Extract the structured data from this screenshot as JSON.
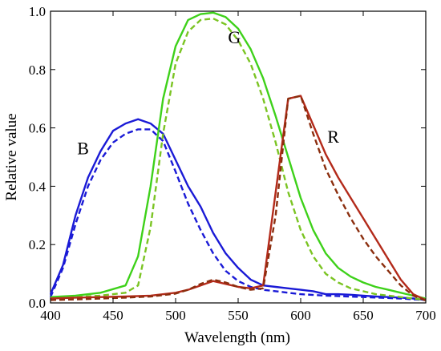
{
  "chart_data": {
    "type": "line",
    "xlabel": "Wavelength (nm)",
    "ylabel": "Relative value",
    "xlim": [
      400,
      700
    ],
    "ylim": [
      0,
      1.0
    ],
    "xticks": [
      400,
      450,
      500,
      550,
      600,
      650,
      700
    ],
    "xtick_labels": [
      "400",
      "450",
      "500",
      "550",
      "600",
      "650",
      "700"
    ],
    "yticks": [
      0,
      0.2,
      0.4,
      0.6,
      0.8,
      1.0
    ],
    "ytick_labels": [
      "0.0",
      "0.2",
      "0.4",
      "0.6",
      "0.8",
      "1.0"
    ],
    "grid": false,
    "annotations": [
      {
        "text": "B",
        "x": 426,
        "y": 0.51
      },
      {
        "text": "G",
        "x": 547,
        "y": 0.89
      },
      {
        "text": "R",
        "x": 626,
        "y": 0.55
      }
    ],
    "series": [
      {
        "color": "#1a1ad6",
        "dash": "solid",
        "x": [
          400,
          410,
          420,
          430,
          440,
          450,
          460,
          470,
          480,
          490,
          500,
          510,
          520,
          530,
          540,
          550,
          560,
          570,
          580,
          590,
          600,
          610,
          620,
          630,
          640,
          650,
          660,
          670,
          680,
          690,
          700
        ],
        "y": [
          0.03,
          0.13,
          0.3,
          0.43,
          0.52,
          0.59,
          0.615,
          0.63,
          0.615,
          0.58,
          0.49,
          0.4,
          0.33,
          0.24,
          0.17,
          0.12,
          0.08,
          0.06,
          0.055,
          0.05,
          0.045,
          0.04,
          0.03,
          0.03,
          0.028,
          0.025,
          0.022,
          0.02,
          0.018,
          0.015,
          0.01
        ]
      },
      {
        "color": "#1a1ad6",
        "dash": "dashed",
        "x": [
          400,
          410,
          420,
          430,
          440,
          450,
          460,
          470,
          480,
          490,
          500,
          510,
          520,
          530,
          540,
          550,
          560,
          570,
          580,
          590,
          600,
          620,
          650,
          680,
          700
        ],
        "y": [
          0.02,
          0.12,
          0.27,
          0.4,
          0.49,
          0.55,
          0.58,
          0.595,
          0.595,
          0.555,
          0.45,
          0.34,
          0.25,
          0.17,
          0.11,
          0.075,
          0.055,
          0.045,
          0.04,
          0.035,
          0.03,
          0.025,
          0.02,
          0.015,
          0.01
        ]
      },
      {
        "color": "#3ed11a",
        "dash": "solid",
        "x": [
          400,
          420,
          440,
          460,
          470,
          480,
          490,
          500,
          510,
          520,
          530,
          540,
          550,
          560,
          570,
          580,
          590,
          600,
          610,
          620,
          630,
          640,
          650,
          660,
          670,
          680,
          690,
          700
        ],
        "y": [
          0.02,
          0.025,
          0.035,
          0.06,
          0.16,
          0.4,
          0.7,
          0.88,
          0.97,
          0.99,
          0.995,
          0.98,
          0.94,
          0.87,
          0.77,
          0.64,
          0.5,
          0.36,
          0.25,
          0.17,
          0.12,
          0.09,
          0.07,
          0.055,
          0.045,
          0.035,
          0.025,
          0.015
        ]
      },
      {
        "color": "#7bc423",
        "dash": "dashed",
        "x": [
          400,
          420,
          440,
          460,
          470,
          480,
          490,
          500,
          510,
          520,
          530,
          540,
          550,
          560,
          570,
          580,
          590,
          600,
          610,
          620,
          630,
          640,
          650,
          660,
          670,
          680,
          690,
          700
        ],
        "y": [
          0.015,
          0.02,
          0.025,
          0.035,
          0.06,
          0.26,
          0.58,
          0.82,
          0.93,
          0.97,
          0.975,
          0.955,
          0.9,
          0.82,
          0.7,
          0.55,
          0.38,
          0.25,
          0.16,
          0.1,
          0.07,
          0.05,
          0.04,
          0.03,
          0.025,
          0.02,
          0.015,
          0.01
        ]
      },
      {
        "color": "#b32a1a",
        "dash": "solid",
        "x": [
          400,
          420,
          440,
          460,
          480,
          500,
          510,
          520,
          530,
          540,
          550,
          560,
          570,
          580,
          590,
          600,
          610,
          620,
          630,
          640,
          650,
          660,
          670,
          680,
          690,
          700
        ],
        "y": [
          0.015,
          0.018,
          0.02,
          0.022,
          0.025,
          0.035,
          0.045,
          0.06,
          0.075,
          0.065,
          0.055,
          0.05,
          0.06,
          0.38,
          0.7,
          0.71,
          0.61,
          0.51,
          0.43,
          0.36,
          0.29,
          0.22,
          0.15,
          0.08,
          0.03,
          0.01
        ]
      },
      {
        "color": "#8b2e0e",
        "dash": "dashed",
        "x": [
          400,
          420,
          440,
          460,
          480,
          500,
          510,
          520,
          530,
          540,
          550,
          560,
          570,
          580,
          590,
          600,
          610,
          620,
          630,
          640,
          650,
          660,
          670,
          680,
          690,
          700
        ],
        "y": [
          0.01,
          0.012,
          0.015,
          0.018,
          0.022,
          0.032,
          0.045,
          0.065,
          0.08,
          0.07,
          0.055,
          0.045,
          0.05,
          0.3,
          0.7,
          0.71,
          0.58,
          0.46,
          0.37,
          0.29,
          0.22,
          0.16,
          0.11,
          0.06,
          0.025,
          0.008
        ]
      }
    ]
  }
}
